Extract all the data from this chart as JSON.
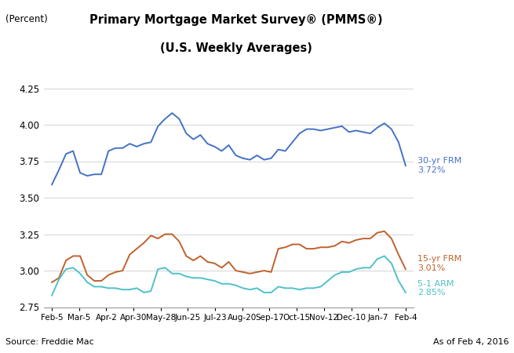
{
  "title_line1": "Primary Mortgage Market Survey® (PMMS®)",
  "title_line2": "(U.S. Weekly Averages)",
  "ylabel": "(Percent)",
  "source_text": "Source: Freddie Mac",
  "date_text": "As of Feb 4, 2016",
  "x_labels": [
    "Feb-5",
    "Mar-5",
    "Apr-2",
    "Apr-30",
    "May-28",
    "Jun-25",
    "Jul-23",
    "Aug-20",
    "Sep-17",
    "Oct-15",
    "Nov-12",
    "Dec-10",
    "Jan-7",
    "Feb-4"
  ],
  "ylim": [
    2.75,
    4.25
  ],
  "yticks": [
    2.75,
    3.0,
    3.25,
    3.5,
    3.75,
    4.0,
    4.25
  ],
  "frm30_label": "30-yr FRM\n3.72%",
  "frm15_label": "15-yr FRM\n3.01%",
  "arm51_label": "5-1 ARM\n2.85%",
  "frm30_color": "#4472C4",
  "frm15_color": "#C0622B",
  "arm51_color": "#4FC1C8",
  "frm30": [
    3.59,
    3.69,
    3.8,
    3.82,
    3.67,
    3.65,
    3.66,
    3.66,
    3.82,
    3.84,
    3.84,
    3.87,
    3.85,
    3.87,
    3.88,
    3.99,
    4.04,
    4.08,
    4.04,
    3.94,
    3.9,
    3.93,
    3.87,
    3.85,
    3.82,
    3.86,
    3.79,
    3.77,
    3.76,
    3.79,
    3.76,
    3.77,
    3.83,
    3.82,
    3.88,
    3.94,
    3.97,
    3.97,
    3.96,
    3.97,
    3.98,
    3.99,
    3.95,
    3.96,
    3.95,
    3.94,
    3.98,
    4.01,
    3.97,
    3.88,
    3.72
  ],
  "frm15": [
    2.92,
    2.95,
    3.07,
    3.1,
    3.1,
    2.97,
    2.93,
    2.93,
    2.97,
    2.99,
    3.0,
    3.11,
    3.15,
    3.19,
    3.24,
    3.22,
    3.25,
    3.25,
    3.2,
    3.1,
    3.07,
    3.1,
    3.06,
    3.05,
    3.02,
    3.06,
    3.0,
    2.99,
    2.98,
    2.99,
    3.0,
    2.99,
    3.15,
    3.16,
    3.18,
    3.18,
    3.15,
    3.15,
    3.16,
    3.16,
    3.17,
    3.2,
    3.19,
    3.21,
    3.22,
    3.22,
    3.26,
    3.27,
    3.22,
    3.11,
    3.01
  ],
  "arm51": [
    2.83,
    2.94,
    3.01,
    3.02,
    2.98,
    2.92,
    2.89,
    2.89,
    2.88,
    2.88,
    2.87,
    2.87,
    2.88,
    2.85,
    2.86,
    3.01,
    3.02,
    2.98,
    2.98,
    2.96,
    2.95,
    2.95,
    2.94,
    2.93,
    2.91,
    2.91,
    2.9,
    2.88,
    2.87,
    2.88,
    2.85,
    2.85,
    2.89,
    2.88,
    2.88,
    2.87,
    2.88,
    2.88,
    2.89,
    2.93,
    2.97,
    2.99,
    2.99,
    3.01,
    3.02,
    3.02,
    3.08,
    3.1,
    3.05,
    2.93,
    2.85
  ]
}
